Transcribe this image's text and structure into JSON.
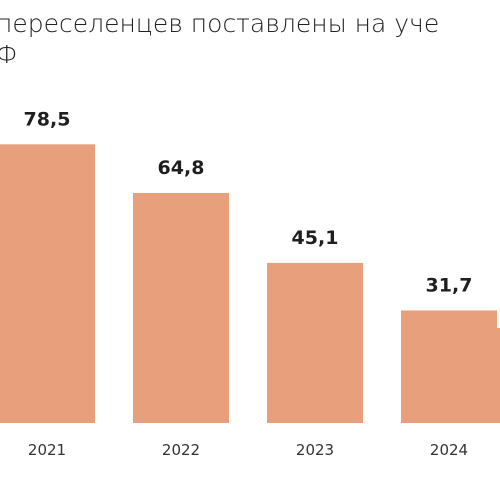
{
  "title_lines": [
    "переселенцев поставлены на уче",
    "Ф"
  ],
  "chart_data": {
    "type": "bar",
    "title": "переселенцев поставлены на уче Ф",
    "categories": [
      "2021",
      "2022",
      "2023",
      "2024"
    ],
    "values": [
      78.5,
      64.8,
      45.1,
      31.7
    ],
    "value_labels": [
      "78,5",
      "64,8",
      "45,1",
      "31,7"
    ],
    "xlabel": "",
    "ylabel": "",
    "ylim": [
      0,
      100
    ],
    "grid": false,
    "legend": "none",
    "bar_color": "#e7a07b"
  }
}
